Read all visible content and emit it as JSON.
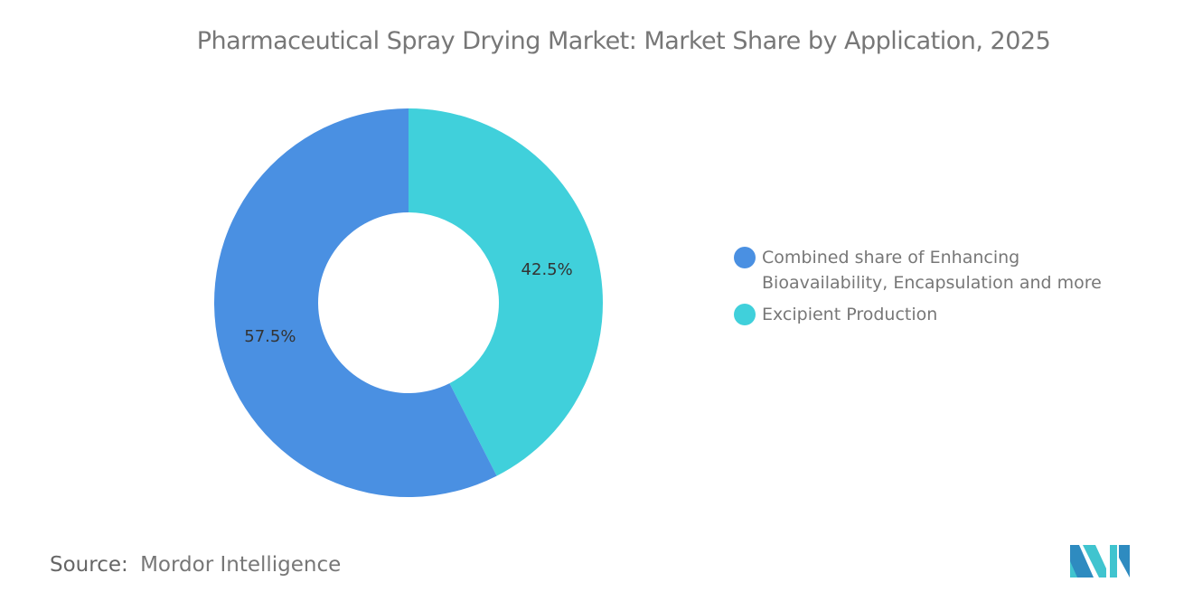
{
  "title": "Pharmaceutical Spray Drying Market: Market Share by Application, 2025",
  "chart_data": {
    "type": "pie",
    "subtype": "donut",
    "title": "Pharmaceutical Spray Drying Market: Market Share by Application, 2025",
    "legend_position": "right",
    "slices": [
      {
        "name": "Excipient Production",
        "value": 42.5,
        "label": "42.5%",
        "color": "#40D0DB"
      },
      {
        "name": "Combined share of Enhancing Bioavailability, Encapsulation and more",
        "value": 57.5,
        "label": "57.5%",
        "color": "#4A90E2"
      }
    ]
  },
  "legend": [
    {
      "label": "Combined share of Enhancing Bioavailability, Encapsulation and more",
      "color": "#4A90E2"
    },
    {
      "label": "Excipient Production",
      "color": "#40D0DB"
    }
  ],
  "source": {
    "label": "Source:",
    "value": "Mordor Intelligence"
  },
  "logo": {
    "text": "Mordor Intelligence"
  }
}
